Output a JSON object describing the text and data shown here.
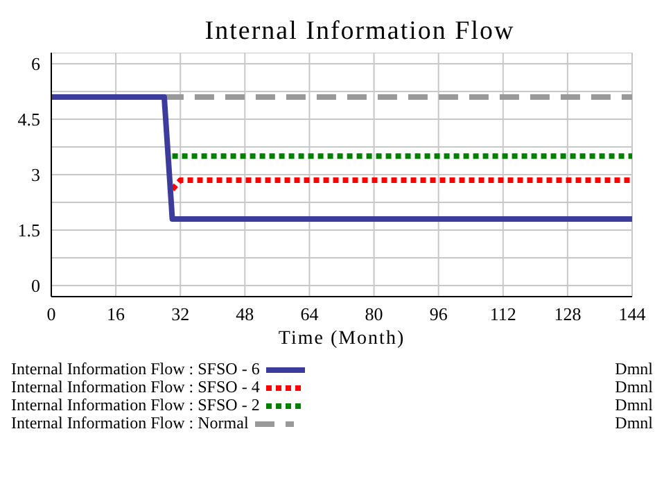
{
  "chart_data": {
    "type": "line",
    "title": "Internal Information Flow",
    "xlabel": "Time (Month)",
    "xlim": [
      0,
      144
    ],
    "xticks": [
      0,
      16,
      32,
      48,
      64,
      80,
      96,
      112,
      128,
      144
    ],
    "ylim": [
      -0.3,
      6.3
    ],
    "yticks": [
      0,
      {
        "value": 0.75,
        "label": null
      },
      1.5,
      {
        "value": 2.25,
        "label": null
      },
      3,
      {
        "value": 3.75,
        "label": null
      },
      4.5,
      {
        "value": 5.25,
        "label": null
      },
      6
    ],
    "grid": true,
    "legend": "bottom",
    "marker": "none",
    "series": [
      {
        "name": "Internal Information Flow : SFSO - 6",
        "color": "#3c3c9c",
        "line_style": "solid",
        "x": [
          0,
          28,
          30,
          144
        ],
        "values": [
          5.1,
          5.1,
          1.8,
          1.8
        ]
      },
      {
        "name": "Internal Information Flow : SFSO - 4",
        "color": "#ff0000",
        "line_style": "dotted",
        "x": [
          30,
          32,
          144
        ],
        "values": [
          2.6,
          2.85,
          2.85
        ]
      },
      {
        "name": "Internal Information Flow : SFSO - 2",
        "color": "#008000",
        "line_style": "dotted",
        "x": [
          30,
          144
        ],
        "values": [
          3.5,
          3.5
        ]
      },
      {
        "name": "Internal Information Flow : Normal",
        "color": "#999999",
        "line_style": "dashed",
        "x": [
          28,
          144
        ],
        "values": [
          5.1,
          5.1
        ]
      }
    ],
    "annotations": [
      "Dmnl",
      "Dmnl",
      "Dmnl",
      "Dmnl"
    ]
  }
}
